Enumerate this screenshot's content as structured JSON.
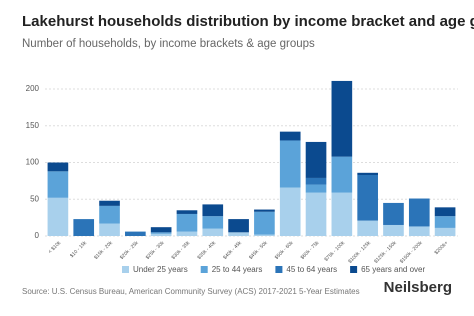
{
  "chart_data": {
    "type": "stacked_bar",
    "title": "Lakehurst households distribution by income bracket and age group",
    "subtitle": "Number of households, by income brackets & age groups",
    "source": "Source: U.S. Census Bureau, American Community Survey (ACS) 2017-2021 5-Year Estimates",
    "brand": "Neilsberg",
    "categories": [
      "< $10k",
      "$10 - 15k",
      "$15k - 20k",
      "$20k - 25k",
      "$25k - 30k",
      "$30k - 35k",
      "$35k - 40k",
      "$40k - 45k",
      "$45k - 50k",
      "$50k - 60k",
      "$60k - 75k",
      "$75k - 100k",
      "$100k - 125k",
      "$125k - 150k",
      "$150k - 200k",
      "$200k+"
    ],
    "series": [
      {
        "name": "Under 25 years",
        "color": "#a8d0ec",
        "values": [
          52,
          0,
          17,
          0,
          3,
          6,
          10,
          5,
          2,
          66,
          59,
          59,
          21,
          15,
          13,
          11
        ]
      },
      {
        "name": "25 to 44 years",
        "color": "#5ba3d9",
        "values": [
          36,
          0,
          24,
          0,
          2,
          24,
          17,
          0,
          31,
          64,
          11,
          49,
          0,
          0,
          0,
          16
        ]
      },
      {
        "name": "45 to 64 years",
        "color": "#2b74b8",
        "values": [
          0,
          23,
          0,
          6,
          0,
          0,
          0,
          0,
          0,
          0,
          9,
          0,
          62,
          30,
          38,
          0
        ]
      },
      {
        "name": "65 years and over",
        "color": "#0b4a8f",
        "values": [
          12,
          0,
          7,
          0,
          7,
          5,
          16,
          18,
          3,
          12,
          49,
          103,
          3,
          0,
          0,
          12
        ]
      }
    ],
    "ylim": [
      0,
      215
    ],
    "yticks": [
      0,
      50,
      100,
      150,
      200
    ],
    "grid": true,
    "legend": "bottom"
  }
}
